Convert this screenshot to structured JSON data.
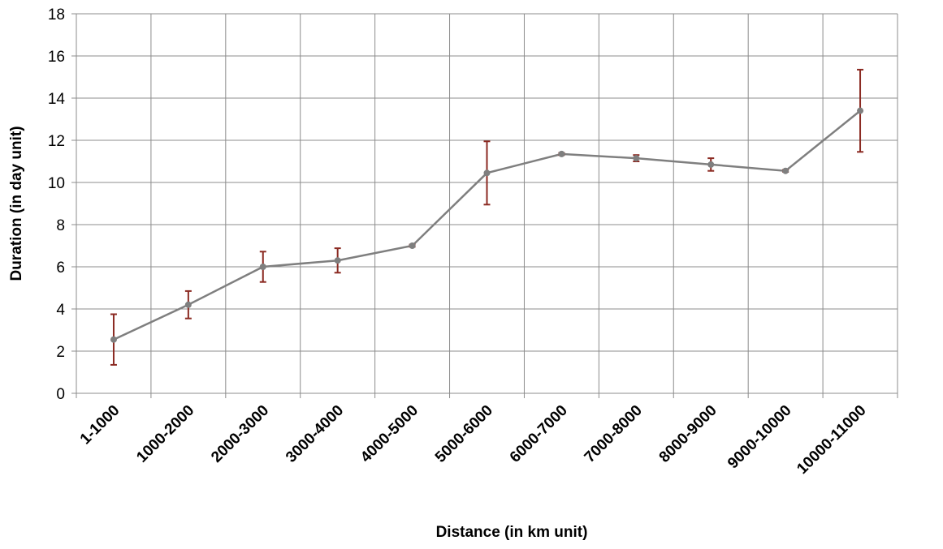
{
  "chart_data": {
    "type": "line",
    "x_label": "Distance (in km unit)",
    "y_label": "Duration (in day unit)",
    "categories": [
      "1-1000",
      "1000-2000",
      "2000-3000",
      "3000-4000",
      "4000-5000",
      "5000-6000",
      "6000-7000",
      "7000-8000",
      "8000-9000",
      "9000-10000",
      "10000-11000"
    ],
    "series": [
      {
        "name": "Duration",
        "color": "#7f7f7f",
        "error_color": "#8b2a22",
        "values": [
          2.55,
          4.2,
          6.0,
          6.3,
          7.0,
          10.45,
          11.35,
          11.15,
          10.85,
          10.55,
          13.4
        ],
        "errors": [
          1.2,
          0.65,
          0.72,
          0.58,
          0.05,
          1.5,
          0.05,
          0.15,
          0.3,
          0.05,
          1.95
        ]
      }
    ],
    "ylim": [
      0,
      18
    ],
    "yticks": [
      0,
      2,
      4,
      6,
      8,
      10,
      12,
      14,
      16,
      18
    ],
    "grid": true
  }
}
